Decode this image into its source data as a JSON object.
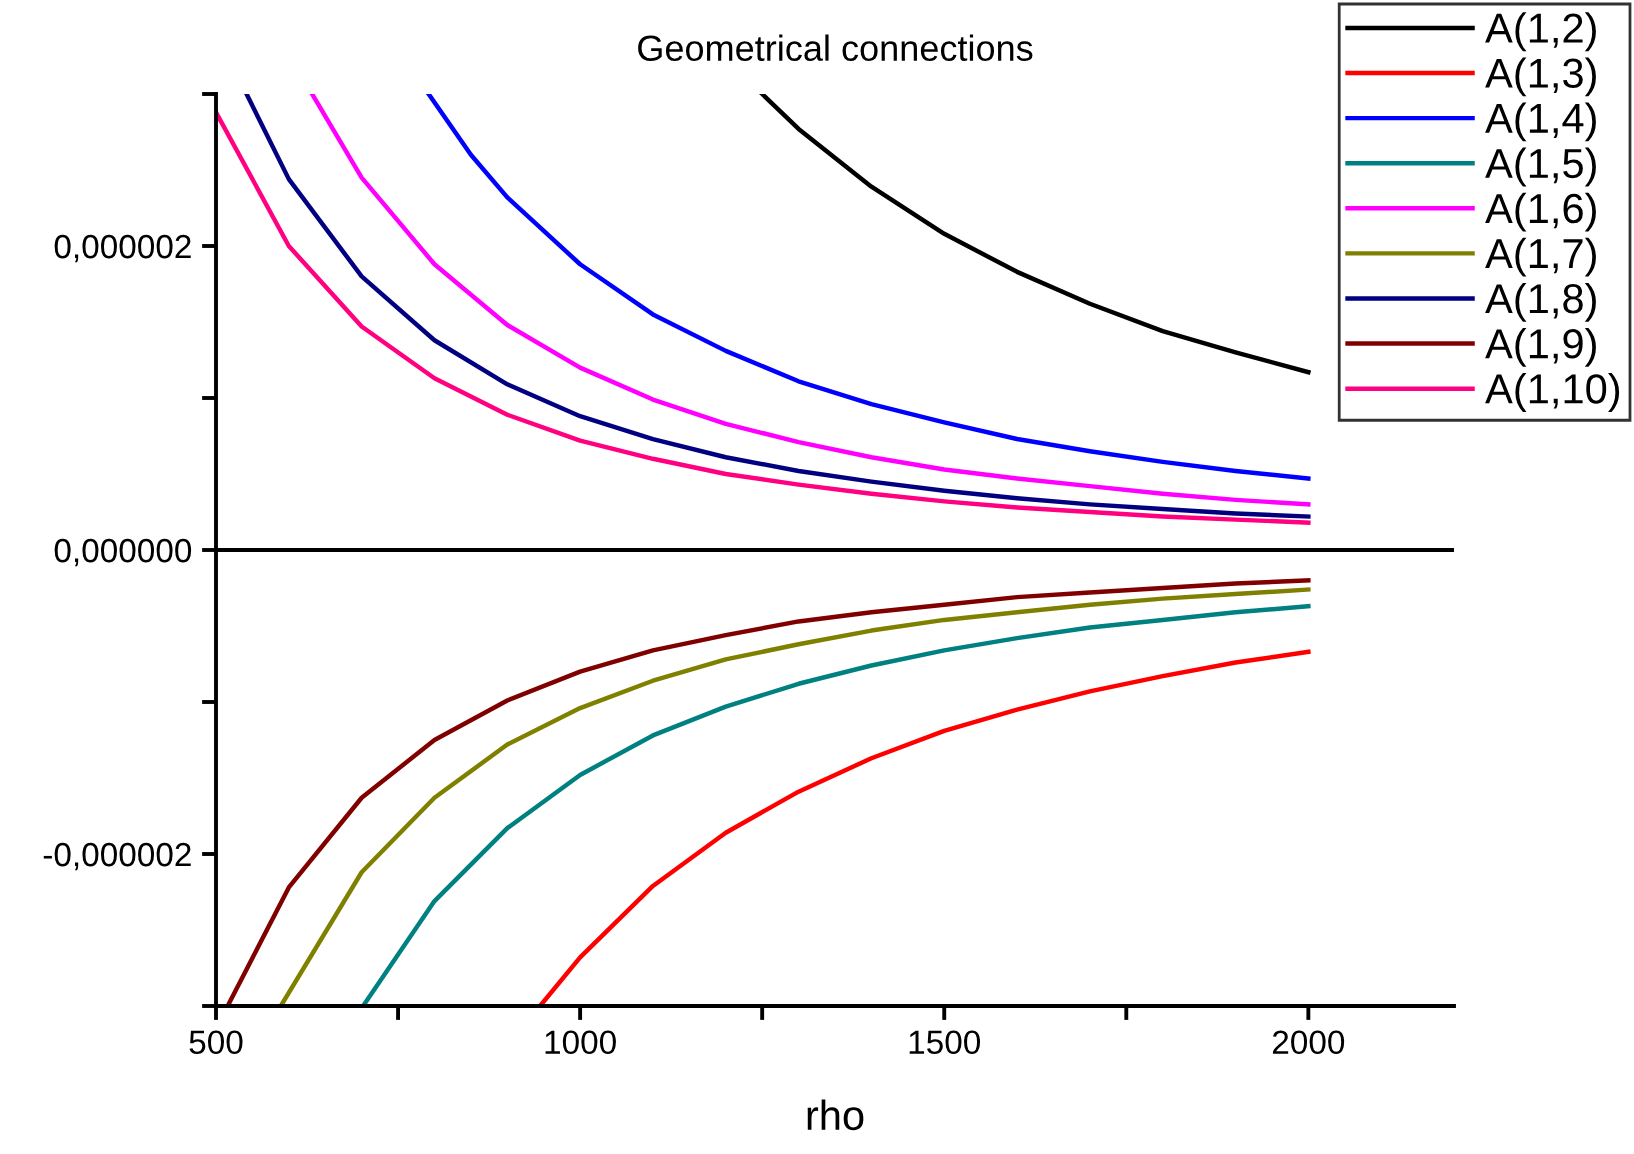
{
  "chart_data": {
    "type": "line",
    "title": "Geometrical connections",
    "xlabel": "rho",
    "xlim": [
      500,
      2200
    ],
    "xticks": [
      500,
      {
        "value": 750,
        "label": null
      },
      1000,
      {
        "value": 1250,
        "label": null
      },
      1500,
      {
        "value": 1750,
        "label": null
      },
      2000
    ],
    "ylim": [
      -3e-06,
      3e-06
    ],
    "yticks": [
      {
        "value": -3e-06,
        "label": null
      },
      {
        "value": -2e-06,
        "label": "-0,000002"
      },
      {
        "value": -1e-06,
        "label": null
      },
      {
        "value": 0,
        "label": "0,000000"
      },
      {
        "value": 1e-06,
        "label": null
      },
      {
        "value": 2e-06,
        "label": "0,000002"
      },
      {
        "value": 3e-06,
        "label": null
      }
    ],
    "ref_lines": [
      {
        "axis": "y",
        "value": 0,
        "color": "#000000"
      }
    ],
    "grid": false,
    "legend": "top right",
    "marker": "none",
    "line_style": "solid",
    "series": [
      {
        "name": "A(1,2)",
        "color": "#000000",
        "x": [
          1250,
          1300,
          1400,
          1500,
          1600,
          1700,
          1800,
          1900,
          2000
        ],
        "values": [
          3e-06,
          2.77e-06,
          2.39e-06,
          2.08e-06,
          1.83e-06,
          1.62e-06,
          1.44e-06,
          1.3e-06,
          1.17e-06
        ]
      },
      {
        "name": "A(1,3)",
        "color": "#ff0000",
        "x": [
          945,
          1000,
          1100,
          1200,
          1300,
          1400,
          1500,
          1600,
          1700,
          1800,
          1900,
          2000
        ],
        "values": [
          -3e-06,
          -2.68e-06,
          -2.21e-06,
          -1.86e-06,
          -1.59e-06,
          -1.37e-06,
          -1.19e-06,
          -1.05e-06,
          -9.3e-07,
          -8.3e-07,
          -7.4e-07,
          -6.7e-07
        ]
      },
      {
        "name": "A(1,4)",
        "color": "#0000ff",
        "x": [
          792,
          850,
          900,
          1000,
          1100,
          1200,
          1300,
          1400,
          1500,
          1600,
          1700,
          1800,
          1900,
          2000
        ],
        "values": [
          3e-06,
          2.6e-06,
          2.32e-06,
          1.88e-06,
          1.55e-06,
          1.31e-06,
          1.11e-06,
          9.6e-07,
          8.4e-07,
          7.3e-07,
          6.5e-07,
          5.8e-07,
          5.2e-07,
          4.7e-07
        ]
      },
      {
        "name": "A(1,5)",
        "color": "#008080",
        "x": [
          702,
          800,
          900,
          1000,
          1100,
          1200,
          1300,
          1400,
          1500,
          1600,
          1700,
          1800,
          1900,
          2000
        ],
        "values": [
          -3e-06,
          -2.31e-06,
          -1.83e-06,
          -1.48e-06,
          -1.22e-06,
          -1.03e-06,
          -8.8e-07,
          -7.6e-07,
          -6.6e-07,
          -5.8e-07,
          -5.1e-07,
          -4.6e-07,
          -4.1e-07,
          -3.7e-07
        ]
      },
      {
        "name": "A(1,6)",
        "color": "#ff00ff",
        "x": [
          632,
          700,
          800,
          900,
          1000,
          1100,
          1200,
          1300,
          1400,
          1500,
          1600,
          1700,
          1800,
          1900,
          2000
        ],
        "values": [
          3e-06,
          2.45e-06,
          1.88e-06,
          1.48e-06,
          1.2e-06,
          9.9e-07,
          8.3e-07,
          7.1e-07,
          6.1e-07,
          5.3e-07,
          4.7e-07,
          4.2e-07,
          3.7e-07,
          3.3e-07,
          3e-07
        ]
      },
      {
        "name": "A(1,7)",
        "color": "#808000",
        "x": [
          589,
          700,
          800,
          900,
          1000,
          1100,
          1200,
          1300,
          1400,
          1500,
          1600,
          1700,
          1800,
          1900,
          2000
        ],
        "values": [
          -3e-06,
          -2.12e-06,
          -1.63e-06,
          -1.28e-06,
          -1.04e-06,
          -8.6e-07,
          -7.2e-07,
          -6.2e-07,
          -5.3e-07,
          -4.6e-07,
          -4.1e-07,
          -3.6e-07,
          -3.2e-07,
          -2.9e-07,
          -2.6e-07
        ]
      },
      {
        "name": "A(1,8)",
        "color": "#000080",
        "x": [
          542,
          600,
          700,
          800,
          900,
          1000,
          1100,
          1200,
          1300,
          1400,
          1500,
          1600,
          1700,
          1800,
          1900,
          2000
        ],
        "values": [
          3e-06,
          2.44e-06,
          1.8e-06,
          1.38e-06,
          1.09e-06,
          8.8e-07,
          7.3e-07,
          6.1e-07,
          5.2e-07,
          4.5e-07,
          3.9e-07,
          3.4e-07,
          3e-07,
          2.7e-07,
          2.4e-07,
          2.2e-07
        ]
      },
      {
        "name": "A(1,9)",
        "color": "#800000",
        "x": [
          516,
          600,
          700,
          800,
          900,
          1000,
          1100,
          1200,
          1300,
          1400,
          1500,
          1600,
          1700,
          1800,
          1900,
          2000
        ],
        "values": [
          -3e-06,
          -2.22e-06,
          -1.63e-06,
          -1.25e-06,
          -9.9e-07,
          -8e-07,
          -6.6e-07,
          -5.6e-07,
          -4.7e-07,
          -4.1e-07,
          -3.6e-07,
          -3.1e-07,
          -2.8e-07,
          -2.5e-07,
          -2.2e-07,
          -2e-07
        ]
      },
      {
        "name": "A(1,10)",
        "color": "#ff0080",
        "x": [
          500,
          600,
          700,
          800,
          900,
          1000,
          1100,
          1200,
          1300,
          1400,
          1500,
          1600,
          1700,
          1800,
          1900,
          2000
        ],
        "values": [
          2.88e-06,
          2e-06,
          1.47e-06,
          1.13e-06,
          8.9e-07,
          7.2e-07,
          6e-07,
          5e-07,
          4.3e-07,
          3.7e-07,
          3.2e-07,
          2.8e-07,
          2.5e-07,
          2.2e-07,
          2e-07,
          1.8e-07
        ]
      }
    ]
  }
}
